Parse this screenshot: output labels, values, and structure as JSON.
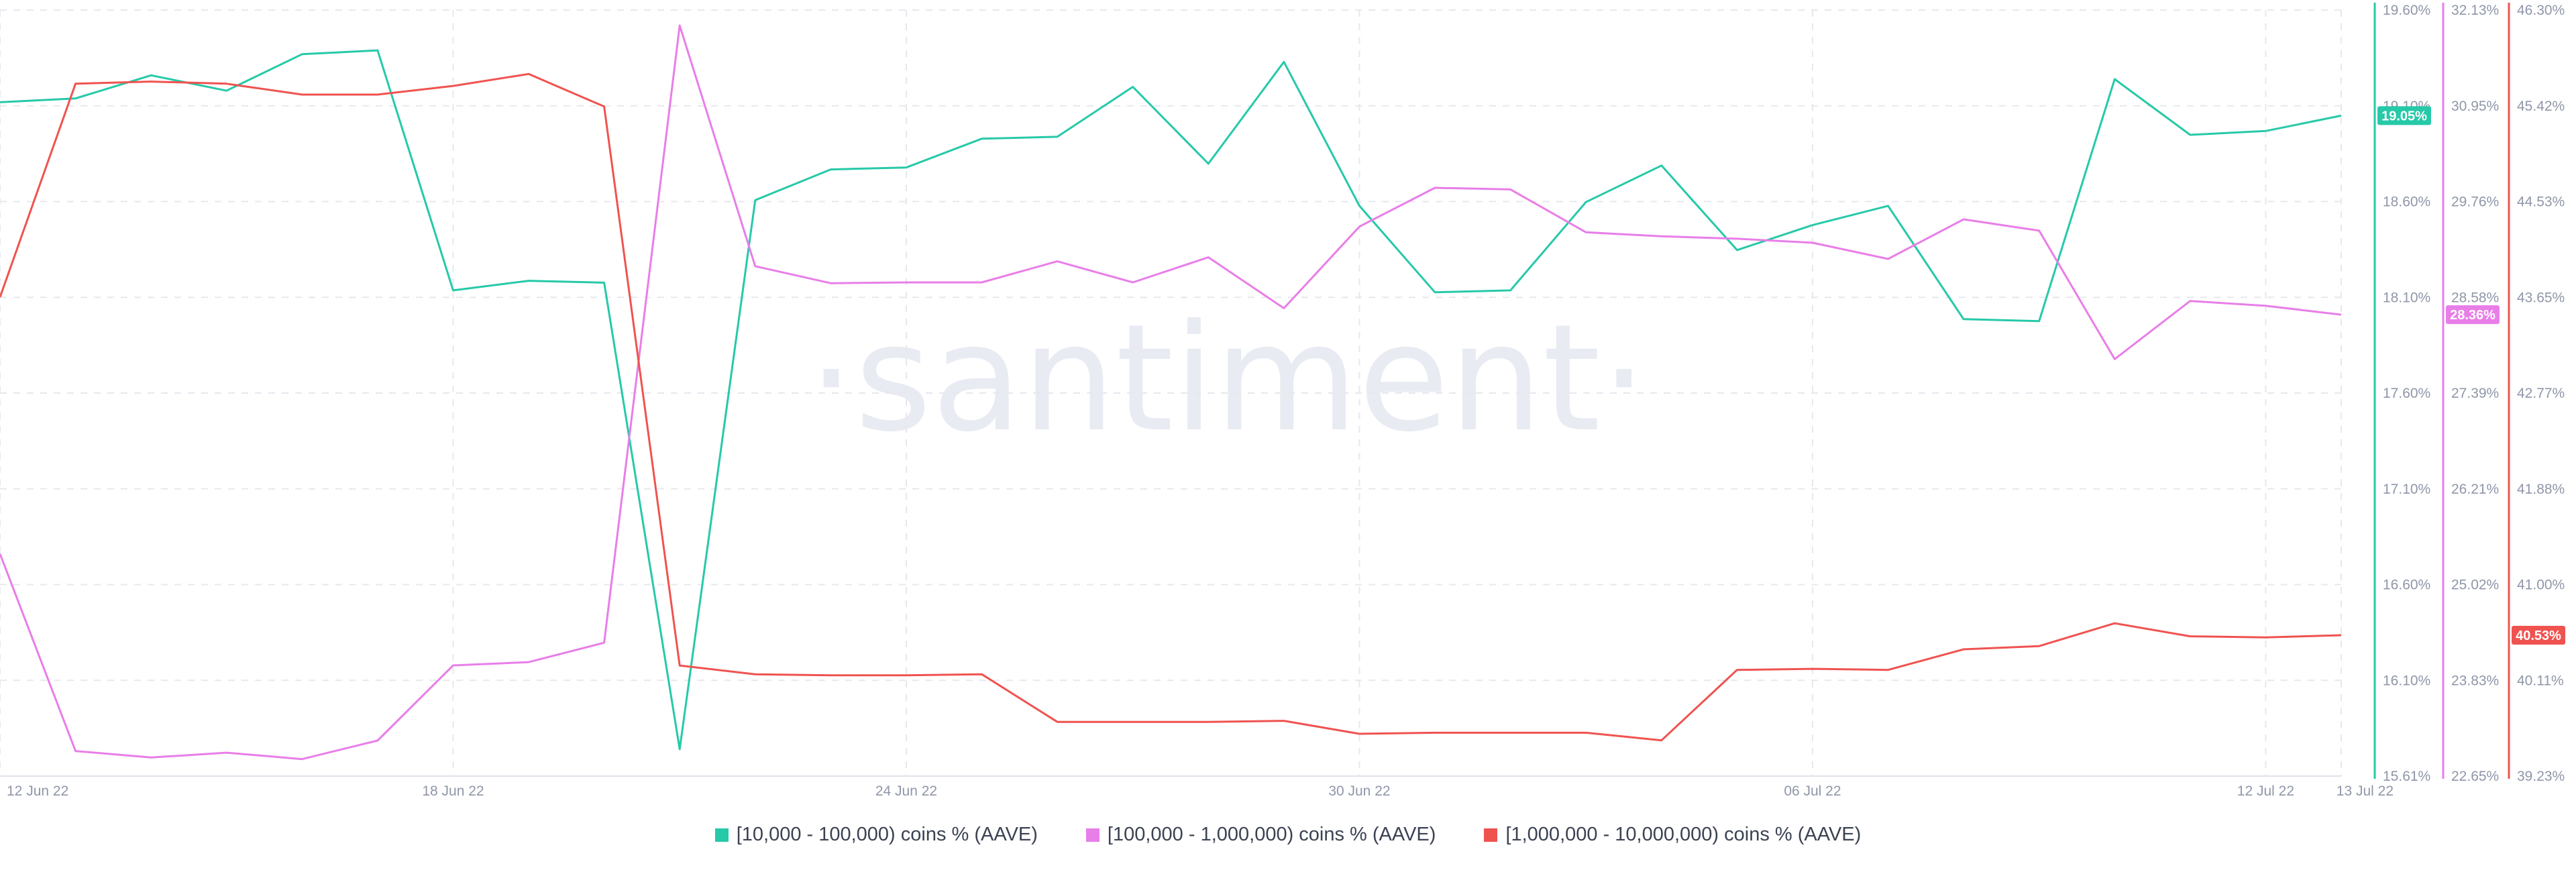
{
  "chart_data": {
    "type": "line",
    "watermark": "·santiment·",
    "x": [
      "12 Jun 22",
      "13 Jun 22",
      "14 Jun 22",
      "15 Jun 22",
      "16 Jun 22",
      "17 Jun 22",
      "18 Jun 22",
      "19 Jun 22",
      "20 Jun 22",
      "21 Jun 22",
      "22 Jun 22",
      "23 Jun 22",
      "24 Jun 22",
      "25 Jun 22",
      "26 Jun 22",
      "27 Jun 22",
      "28 Jun 22",
      "29 Jun 22",
      "30 Jun 22",
      "01 Jul 22",
      "02 Jul 22",
      "03 Jul 22",
      "04 Jul 22",
      "05 Jul 22",
      "06 Jul 22",
      "07 Jul 22",
      "08 Jul 22",
      "09 Jul 22",
      "10 Jul 22",
      "11 Jul 22",
      "12 Jul 22",
      "13 Jul 22"
    ],
    "x_tick_labels": [
      "12 Jun 22",
      "18 Jun 22",
      "24 Jun 22",
      "30 Jun 22",
      "06 Jul 22",
      "12 Jul 22",
      "13 Jul 22"
    ],
    "series": [
      {
        "name": "[10,000 - 100,000) coins % (AAVE)",
        "color": "#26c9a8",
        "axis": {
          "min": 15.61,
          "max": 19.6,
          "ticks": [
            "19.60%",
            "19.10%",
            "18.60%",
            "18.10%",
            "17.60%",
            "17.10%",
            "16.60%",
            "16.10%",
            "15.61%"
          ]
        },
        "last_value_label": "19.05%",
        "values": [
          19.12,
          19.14,
          19.26,
          19.18,
          19.37,
          19.39,
          18.14,
          18.19,
          18.18,
          15.75,
          18.61,
          18.77,
          18.78,
          18.93,
          18.94,
          19.2,
          18.8,
          19.33,
          18.58,
          18.13,
          18.14,
          18.6,
          18.79,
          18.35,
          18.48,
          18.58,
          17.99,
          17.98,
          19.24,
          18.95,
          18.97,
          19.05
        ]
      },
      {
        "name": "[100,000  - 1,000,000) coins % (AAVE)",
        "color": "#e87ee8",
        "axis": {
          "min": 22.65,
          "max": 32.13,
          "ticks": [
            "32.13%",
            "30.95%",
            "29.76%",
            "28.58%",
            "27.39%",
            "26.21%",
            "25.02%",
            "23.83%",
            "22.65%"
          ]
        },
        "last_value_label": "28.36%",
        "values": [
          25.4,
          22.96,
          22.88,
          22.94,
          22.86,
          23.09,
          24.02,
          24.06,
          24.3,
          31.94,
          28.96,
          28.75,
          28.76,
          28.76,
          29.02,
          28.76,
          29.07,
          28.44,
          29.45,
          29.93,
          29.91,
          29.38,
          29.33,
          29.3,
          29.25,
          29.05,
          29.54,
          29.4,
          27.81,
          28.53,
          28.47,
          28.36
        ]
      },
      {
        "name": "[1,000,000 - 10,000,000) coins % (AAVE)",
        "color": "#ef5350",
        "axis": {
          "min": 39.23,
          "max": 46.3,
          "ticks": [
            "46.30%",
            "45.42%",
            "44.53%",
            "43.65%",
            "42.77%",
            "41.88%",
            "41.00%",
            "40.11%",
            "39.23%"
          ]
        },
        "last_value_label": "40.53%",
        "values": [
          43.65,
          45.62,
          45.64,
          45.62,
          45.52,
          45.52,
          45.6,
          45.71,
          45.41,
          40.25,
          40.17,
          40.16,
          40.16,
          40.17,
          39.73,
          39.73,
          39.73,
          39.74,
          39.62,
          39.63,
          39.63,
          39.63,
          39.56,
          40.21,
          40.22,
          40.21,
          40.4,
          40.43,
          40.64,
          40.52,
          40.51,
          40.53
        ]
      }
    ],
    "grid": true,
    "legend_position": "bottom-center"
  }
}
